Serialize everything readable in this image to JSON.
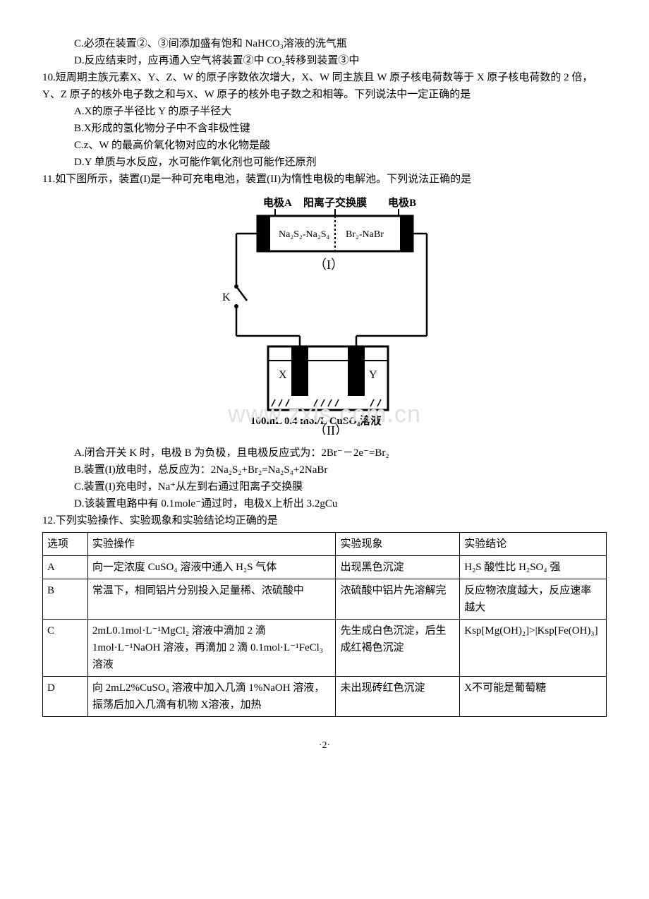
{
  "q9": {
    "C": "C.必须在装置②、③间添加盛有饱和 NaHCO₃溶液的洗气瓶",
    "D": "D.反应结束时，应再通入空气将装置②中 CO₂转移到装置③中"
  },
  "q10": {
    "stem": "10.短周期主族元素X、Y、Z、W 的原子序数依次增大，X、W 同主族且 W 原子核电荷数等于 X 原子核电荷数的 2 倍，Y、Z 原子的核外电子数之和与X、W 原子的核外电子数之和相等。下列说法中一定正确的是",
    "A": "A.X的原子半径比 Y 的原子半径大",
    "B": "B.X形成的氢化物分子中不含非极性键",
    "C": "C.z、W 的最高价氧化物对应的水化物是酸",
    "D": "D.Y 单质与水反应，水可能作氧化剂也可能作还原剂"
  },
  "q11": {
    "stem": "11.如下图所示，装置(I)是一种可充电电池，装置(II)为惰性电极的电解池。下列说法正确的是",
    "diagram": {
      "label_electrodeA": "电极A",
      "label_membrane": "阳离子交换膜",
      "label_electrodeB": "电极B",
      "left_cell": "Na₂S₂-Na₂S₄",
      "right_cell": "Br₂-NaBr",
      "cell1": "（I）",
      "K": "K",
      "X": "X",
      "Y": "Y",
      "elec_caption": "100mL 0.4 mol/L CuSO₄溶液",
      "cell2": "（II）",
      "colors": {
        "stroke": "#000000",
        "fill_electrode": "#000000",
        "fill_bg": "#ffffff"
      }
    },
    "A": "A.闭合开关 K 时，电极 B 为负极，且电极反应式为：2Br⁻－2e⁻=Br₂",
    "B": "B.装置(I)放电时，总反应为：2Na₂S₂+Br₂=Na₂S₄+2NaBr",
    "C": "C.装置(I)充电时，Na⁺从左到右通过阳离子交换膜",
    "D": "D.该装置电路中有 0.1mole⁻通过时，电极X上析出 3.2gCu"
  },
  "q12": {
    "stem": "12.下列实验操作、实验现象和实验结论均正确的是",
    "headers": [
      "选项",
      "实验操作",
      "实验现象",
      "实验结论"
    ],
    "rows": [
      {
        "opt": "A",
        "op": "向一定浓度 CuSO₄ 溶液中通入 H₂S 气体",
        "ph": "出现黑色沉淀",
        "con": "H₂S 酸性比 H₂SO₄ 强"
      },
      {
        "opt": "B",
        "op": "常温下，相同铝片分别投入足量稀、浓硫酸中",
        "ph": "浓硫酸中铝片先溶解完",
        "con": "反应物浓度越大，反应速率越大"
      },
      {
        "opt": "C",
        "op": "2mL0.1mol·L⁻¹MgCl₂ 溶液中滴加 2 滴 1mol·L⁻¹NaOH 溶液，再滴加 2 滴 0.1mol·L⁻¹FeCl₃ 溶液",
        "ph": "先生成白色沉淀，后生成红褐色沉淀",
        "con": "Ksp[Mg(OH)₂]>|Ksp[Fe(OH)₃]"
      },
      {
        "opt": "D",
        "op": "向 2mL2%CuSO₄ 溶液中加入几滴 1%NaOH 溶液，振荡后加入几滴有机物 X溶液，加热",
        "ph": "未出现砖红色沉淀",
        "con": "X不可能是葡萄糖"
      }
    ],
    "col_widths": [
      "8%",
      "44%",
      "22%",
      "26%"
    ]
  },
  "watermark": "www.zxls.com.cn",
  "page_number": "·2·"
}
